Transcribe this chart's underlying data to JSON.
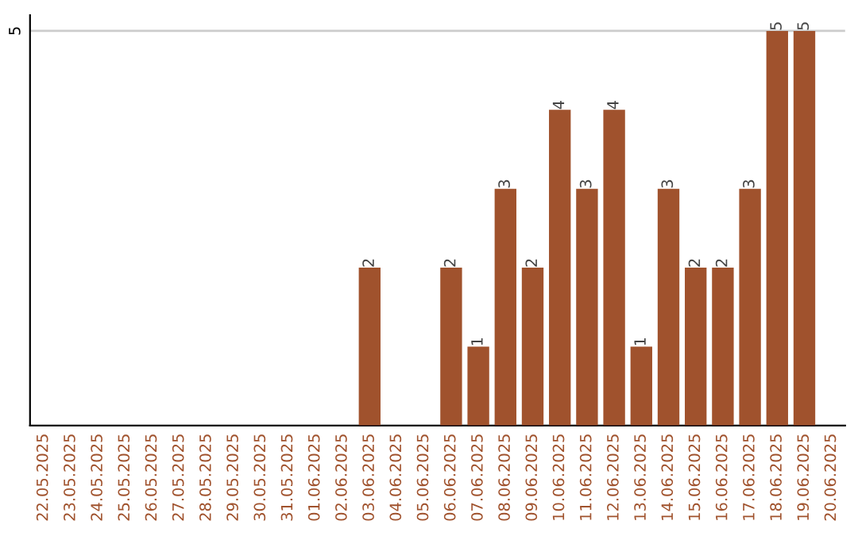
{
  "chart_data": {
    "type": "bar",
    "categories": [
      "22.05.2025",
      "23.05.2025",
      "24.05.2025",
      "25.05.2025",
      "26.05.2025",
      "27.05.2025",
      "28.05.2025",
      "29.05.2025",
      "30.05.2025",
      "31.05.2025",
      "01.06.2025",
      "02.06.2025",
      "03.06.2025",
      "04.06.2025",
      "05.06.2025",
      "06.06.2025",
      "07.06.2025",
      "08.06.2025",
      "09.06.2025",
      "10.06.2025",
      "11.06.2025",
      "12.06.2025",
      "13.06.2025",
      "14.06.2025",
      "15.06.2025",
      "16.06.2025",
      "17.06.2025",
      "18.06.2025",
      "19.06.2025",
      "20.06.2025"
    ],
    "values": [
      null,
      null,
      null,
      null,
      null,
      null,
      null,
      null,
      null,
      null,
      null,
      null,
      2,
      null,
      null,
      2,
      1,
      3,
      2,
      4,
      3,
      4,
      1,
      3,
      2,
      2,
      3,
      5,
      5,
      null
    ],
    "data_labels": true,
    "color": "#a0522d",
    "ylim": [
      0,
      5.2
    ],
    "ref_lines": [
      {
        "axis": "y",
        "value": 5,
        "label": "5",
        "color": "#cccccc"
      }
    ]
  }
}
